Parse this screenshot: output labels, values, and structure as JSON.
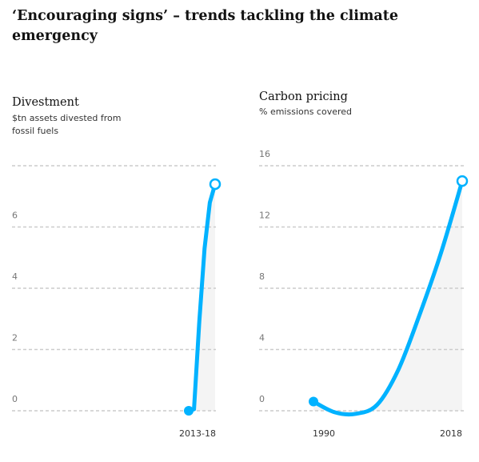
{
  "title": "‘Encouraging signs’ – trends tackling the climate emergency",
  "colors": {
    "line": "#00b2ff",
    "grid": "#cccccc",
    "area": "#f4f4f4",
    "text": "#121212",
    "tick": "#767676"
  },
  "chart_data": [
    {
      "type": "line",
      "title": "Divestment",
      "subtitle": "$tn assets divested from fossil fuels",
      "ylim": [
        0,
        8
      ],
      "yticks": [
        0,
        2,
        4,
        6
      ],
      "grid": true,
      "xtick_labels": [
        "2013-18"
      ],
      "series": [
        {
          "x": [
            "2013",
            "2014",
            "2015",
            "2016",
            "2017",
            "2018"
          ],
          "y": [
            0.0,
            0.05,
            2.9,
            5.3,
            6.8,
            7.4
          ]
        }
      ]
    },
    {
      "type": "line",
      "title": "Carbon pricing",
      "subtitle": "% emissions covered",
      "ylim": [
        0,
        16
      ],
      "yticks": [
        0,
        4,
        8,
        12,
        16
      ],
      "grid": true,
      "xtick_labels": [
        "1990",
        "2018"
      ],
      "series": [
        {
          "x": [
            1990,
            1994,
            1998,
            2002,
            2006,
            2010,
            2014,
            2018
          ],
          "y": [
            0.6,
            -0.1,
            -0.2,
            0.4,
            2.7,
            6.3,
            10.3,
            15.0
          ]
        }
      ]
    }
  ]
}
